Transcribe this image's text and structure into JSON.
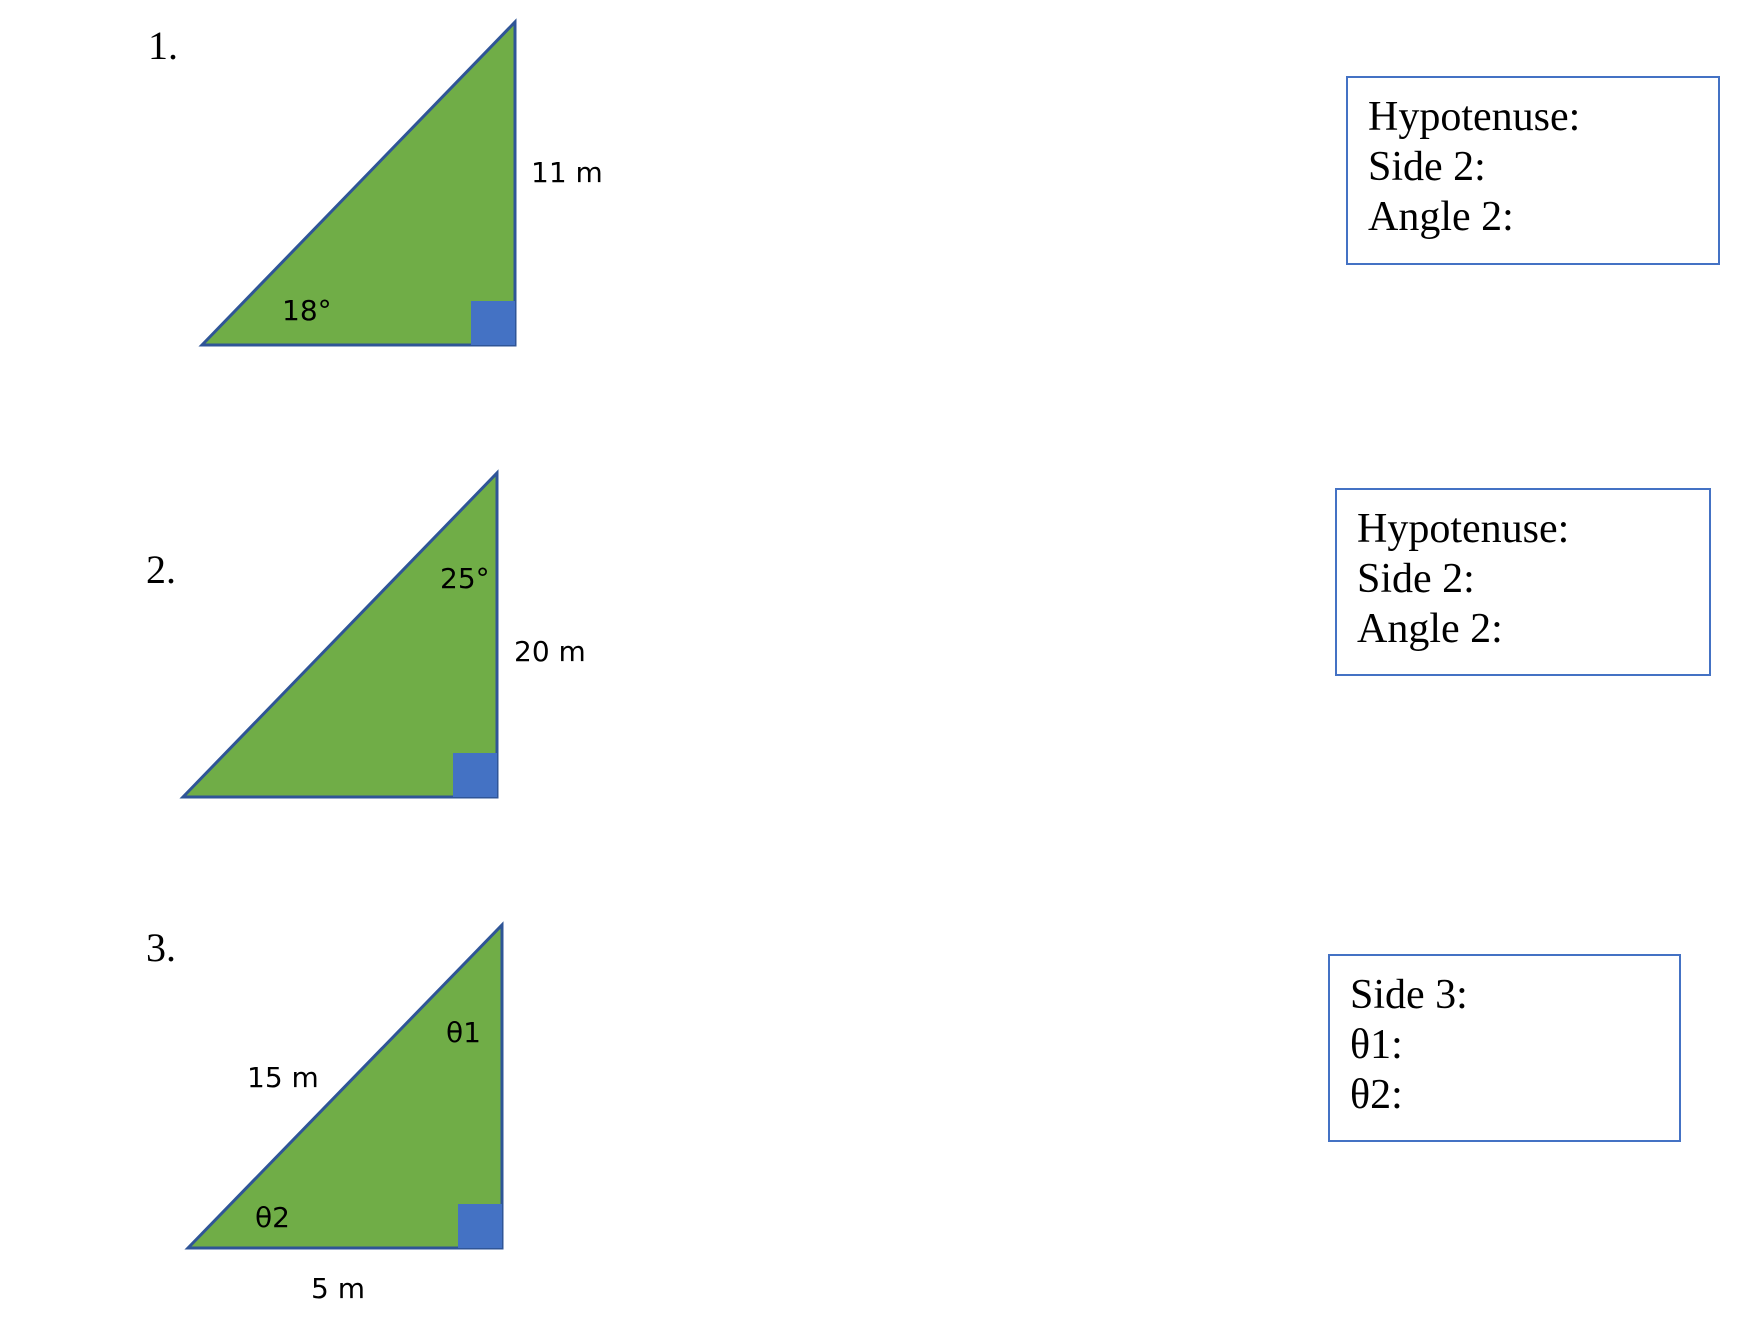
{
  "problems": [
    {
      "number": "1.",
      "labels": {
        "side": "11 m",
        "angle": "18°"
      },
      "answer_box": [
        "Hypotenuse:",
        "Side 2:",
        "Angle 2:"
      ]
    },
    {
      "number": "2.",
      "labels": {
        "side": "20 m",
        "angle": "25°"
      },
      "answer_box": [
        "Hypotenuse:",
        "Side 2:",
        "Angle 2:"
      ]
    },
    {
      "number": "3.",
      "labels": {
        "hypotenuse": "15 m",
        "base": "5 m",
        "theta1": "θ1",
        "theta2": "θ2"
      },
      "answer_box": [
        "Side 3:",
        "θ1:",
        "θ2:"
      ]
    }
  ],
  "colors": {
    "triangle_fill": "#70ad47",
    "outline": "#2f5597",
    "right_angle_marker": "#4472c4",
    "box_border": "#4472c4"
  }
}
